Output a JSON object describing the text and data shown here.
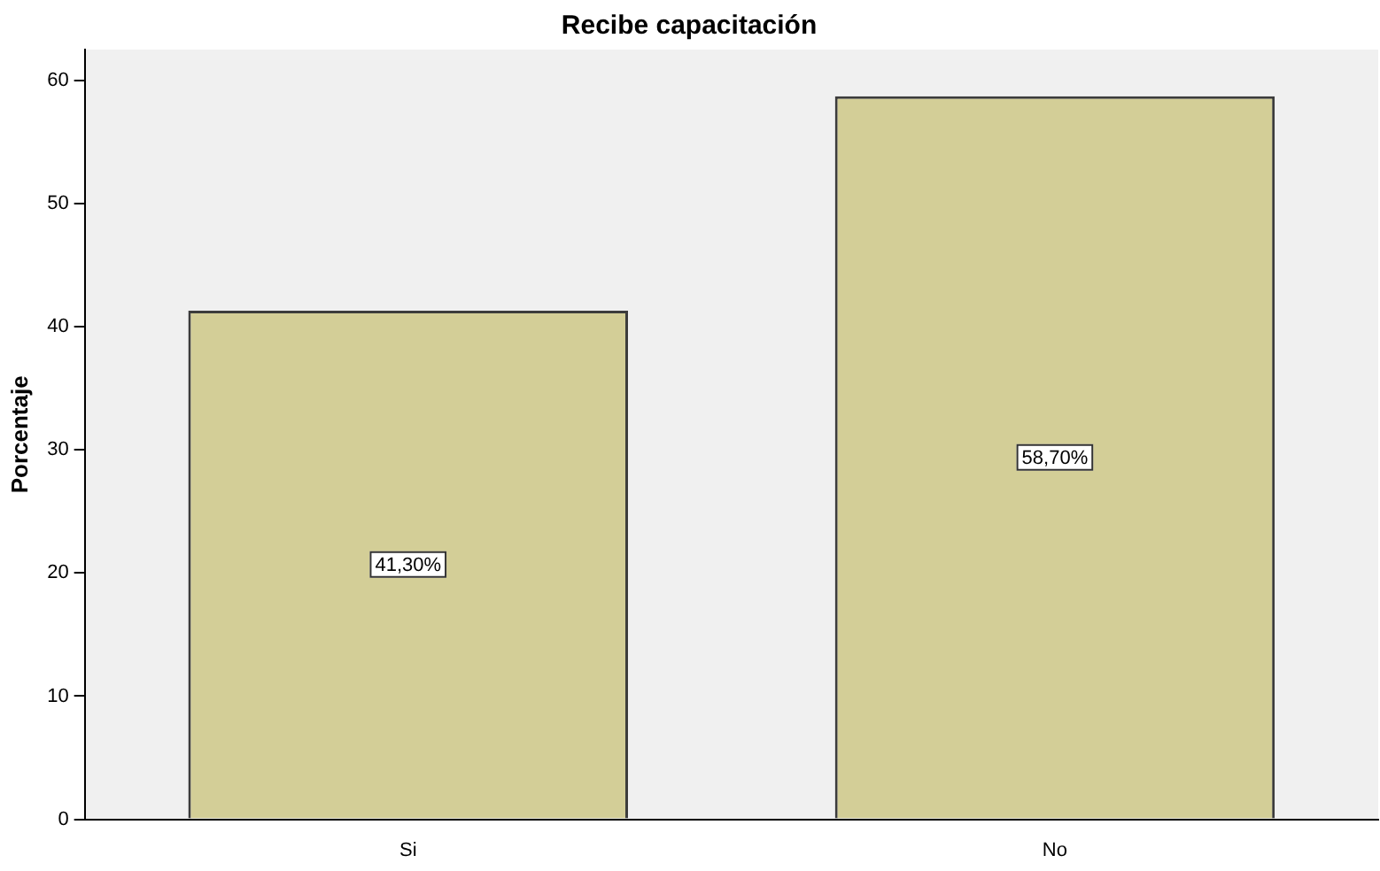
{
  "chart_data": {
    "type": "bar",
    "title": "Recibe capacitación",
    "ylabel": "Porcentaje",
    "categories": [
      "Si",
      "No"
    ],
    "values": [
      41.3,
      58.7
    ],
    "value_labels": [
      "41,30%",
      "58,70%"
    ],
    "color": "#d3ce97",
    "ylim": [
      0,
      62.5
    ],
    "yticks": [
      0,
      10,
      20,
      30,
      40,
      50,
      60
    ],
    "grid": false,
    "legend": false
  }
}
